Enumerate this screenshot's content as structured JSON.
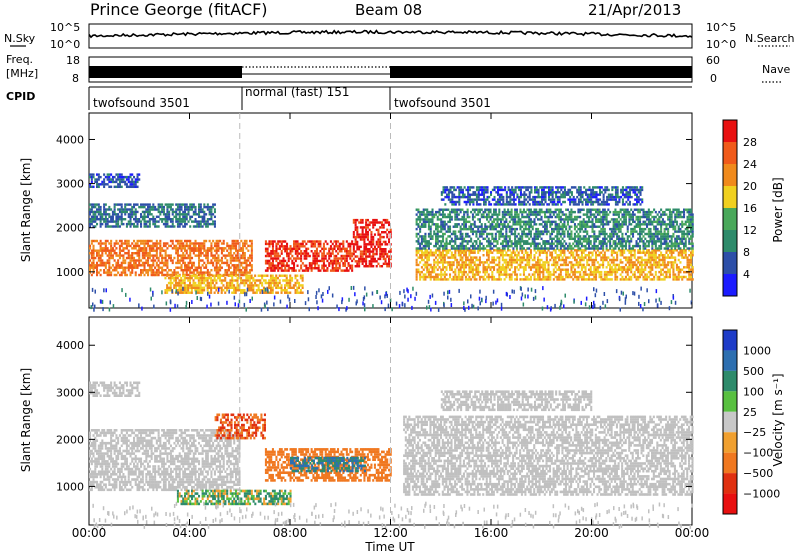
{
  "header": {
    "station": "Prince George (fitACF)",
    "beam": "Beam 08",
    "date": "21/Apr/2013"
  },
  "noise_panel": {
    "left_label": "N.Sky",
    "right_label": "N.Search",
    "left_ticks": [
      "10^5",
      "10^0"
    ],
    "right_ticks": [
      "10^5",
      "10^0"
    ]
  },
  "freq_panel": {
    "left_label_line1": "Freq.",
    "left_label_line2": "[MHz]",
    "left_ticks": [
      "18",
      "8"
    ],
    "right_ticks": [
      "60",
      "0"
    ],
    "right_label": "Nave"
  },
  "cpid_panel": {
    "label": "CPID",
    "segments": [
      {
        "name": "twofsound 3501",
        "start": 0,
        "end": 6
      },
      {
        "name": "normal (fast) 151",
        "start": 6,
        "end": 12
      },
      {
        "name": "twofsound 3501",
        "start": 12,
        "end": 24
      }
    ]
  },
  "colors": {
    "power_scale": [
      "#1c1cff",
      "#2d4fa8",
      "#2e8b6b",
      "#49a85a",
      "#f0d020",
      "#f08a1c",
      "#f05a1a",
      "#e81010"
    ],
    "velocity_scale": [
      "#1e3cc8",
      "#2d6fb0",
      "#2e8b6b",
      "#58c040",
      "#c8c8c8",
      "#f0a030",
      "#f07820",
      "#e03010",
      "#e81010"
    ],
    "ground_scatter": "#c0c0c0"
  },
  "chart_data": [
    {
      "type": "heatmap",
      "title": "",
      "xlabel": "",
      "ylabel": "Slant Range [km]",
      "xlim": [
        0,
        24
      ],
      "ylim": [
        180,
        4600
      ],
      "x_ticks": [
        "00:00",
        "04:00",
        "08:00",
        "12:00",
        "16:00",
        "20:00",
        "00:00"
      ],
      "y_ticks": [
        1000,
        2000,
        3000,
        4000
      ],
      "colorbar": {
        "label": "Power [dB]",
        "range": [
          0,
          32
        ],
        "ticks": [
          4,
          8,
          12,
          16,
          20,
          24,
          28
        ]
      },
      "bands": [
        {
          "t0": 0.0,
          "t1": 6.5,
          "r0": 900,
          "r1": 1700,
          "level": 24
        },
        {
          "t0": 0.0,
          "t1": 5.0,
          "r0": 2000,
          "r1": 2500,
          "level": 8
        },
        {
          "t0": 0.0,
          "t1": 2.0,
          "r0": 2900,
          "r1": 3200,
          "level": 6
        },
        {
          "t0": 3.0,
          "t1": 8.5,
          "r0": 500,
          "r1": 900,
          "level": 20
        },
        {
          "t0": 7.0,
          "t1": 10.5,
          "r0": 1000,
          "r1": 1700,
          "level": 28
        },
        {
          "t0": 10.5,
          "t1": 12.0,
          "r0": 1100,
          "r1": 2200,
          "level": 30
        },
        {
          "t0": 13.0,
          "t1": 24.0,
          "r0": 800,
          "r1": 1500,
          "level": 20
        },
        {
          "t0": 13.0,
          "t1": 24.0,
          "r0": 1500,
          "r1": 2400,
          "level": 10
        },
        {
          "t0": 14.0,
          "t1": 22.0,
          "r0": 2500,
          "r1": 2900,
          "level": 6
        }
      ]
    },
    {
      "type": "heatmap",
      "title": "",
      "xlabel": "Time UT",
      "ylabel": "Slant Range [km]",
      "xlim": [
        0,
        24
      ],
      "ylim": [
        180,
        4600
      ],
      "x_ticks": [
        "00:00",
        "04:00",
        "08:00",
        "12:00",
        "16:00",
        "20:00",
        "00:00"
      ],
      "y_ticks": [
        1000,
        2000,
        3000,
        4000
      ],
      "colorbar": {
        "label": "Velocity [m s⁻¹]",
        "ticks": [
          "1000",
          "500",
          "100",
          "25",
          "−25",
          "−100",
          "−500",
          "−1000"
        ]
      },
      "bands": [
        {
          "t0": 0.0,
          "t1": 6.0,
          "r0": 900,
          "r1": 2200,
          "level": "ground"
        },
        {
          "t0": 0.0,
          "t1": 2.0,
          "r0": 2900,
          "r1": 3200,
          "level": "ground"
        },
        {
          "t0": 3.5,
          "t1": 8.0,
          "r0": 600,
          "r1": 900,
          "level": 100
        },
        {
          "t0": 5.0,
          "t1": 7.0,
          "r0": 2000,
          "r1": 2500,
          "level": -500
        },
        {
          "t0": 7.0,
          "t1": 12.0,
          "r0": 1100,
          "r1": 1800,
          "level": -250
        },
        {
          "t0": 8.0,
          "t1": 11.0,
          "r0": 1300,
          "r1": 1600,
          "level": 500
        },
        {
          "t0": 12.5,
          "t1": 24.0,
          "r0": 800,
          "r1": 2500,
          "level": "ground"
        },
        {
          "t0": 14.0,
          "t1": 20.0,
          "r0": 2600,
          "r1": 3000,
          "level": "ground"
        }
      ]
    }
  ]
}
